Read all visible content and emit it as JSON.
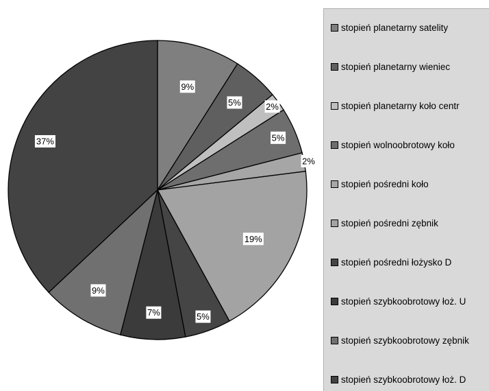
{
  "chart_data": {
    "type": "pie",
    "title": "",
    "start": "12 o'clock, clockwise",
    "legend_placement": "right",
    "slices": [
      {
        "name": "stopień planetarny satelity",
        "value": 9,
        "label": "9%",
        "color": "#7f7f7f"
      },
      {
        "name": "stopień planetarny wieniec",
        "value": 5,
        "label": "5%",
        "color": "#5f5f5f"
      },
      {
        "name": "stopień planetarny koło centr",
        "value": 2,
        "label": "2%",
        "color": "#bfbfbf"
      },
      {
        "name": "stopień wolnoobrotowy koło",
        "value": 5,
        "label": "5%",
        "color": "#6e6e6e"
      },
      {
        "name": "stopień pośredni koło",
        "value": 2,
        "label": "2%",
        "color": "#a6a6a6"
      },
      {
        "name": "stopień pośredni zębnik",
        "value": 19,
        "label": "19%",
        "color": "#a3a3a3"
      },
      {
        "name": "stopień pośredni łożysko D",
        "value": 5,
        "label": "5%",
        "color": "#454545"
      },
      {
        "name": "stopień szybkoobrotowy łoż. U",
        "value": 7,
        "label": "7%",
        "color": "#3b3b3b"
      },
      {
        "name": "stopień szybkoobrotowy zębnik",
        "value": 9,
        "label": "9%",
        "color": "#707070"
      },
      {
        "name": "stopień szybkoobrotowy łoż. D",
        "value": 37,
        "label": "37%",
        "color": "#434343"
      }
    ]
  }
}
